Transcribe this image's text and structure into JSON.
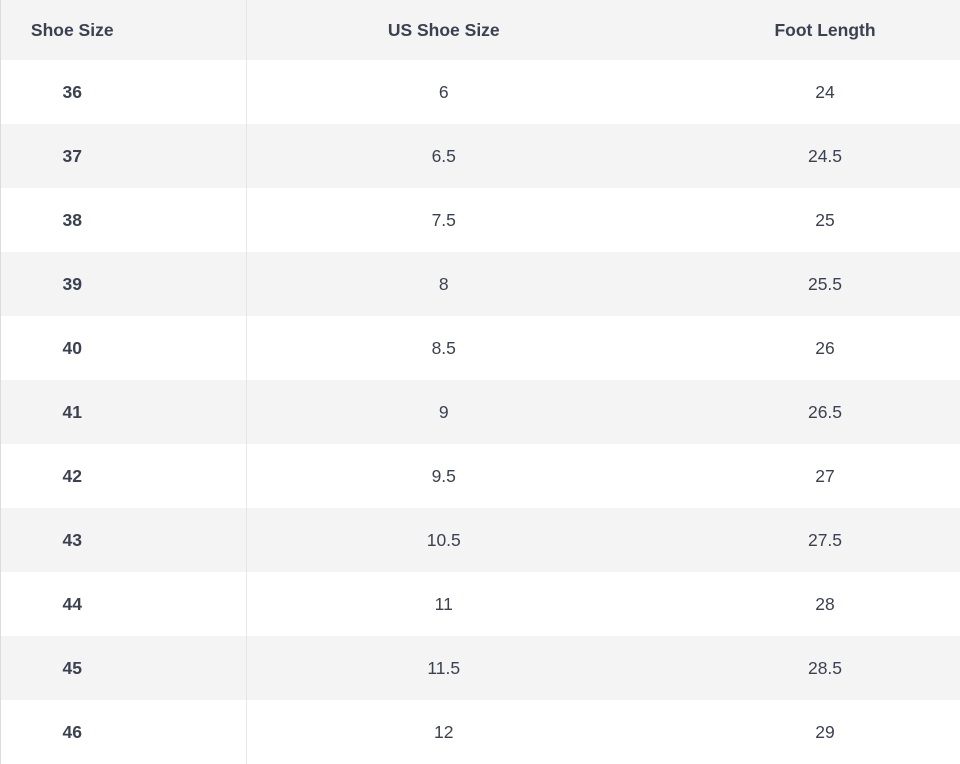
{
  "table": {
    "columns": [
      {
        "key": "shoe_size",
        "label": "Shoe Size"
      },
      {
        "key": "us_shoe_size",
        "label": "US Shoe Size"
      },
      {
        "key": "foot_length",
        "label": "Foot Length"
      }
    ],
    "rows": [
      {
        "shoe_size": "36",
        "us_shoe_size": "6",
        "foot_length": "24"
      },
      {
        "shoe_size": "37",
        "us_shoe_size": "6.5",
        "foot_length": "24.5"
      },
      {
        "shoe_size": "38",
        "us_shoe_size": "7.5",
        "foot_length": "25"
      },
      {
        "shoe_size": "39",
        "us_shoe_size": "8",
        "foot_length": "25.5"
      },
      {
        "shoe_size": "40",
        "us_shoe_size": "8.5",
        "foot_length": "26"
      },
      {
        "shoe_size": "41",
        "us_shoe_size": "9",
        "foot_length": "26.5"
      },
      {
        "shoe_size": "42",
        "us_shoe_size": "9.5",
        "foot_length": "27"
      },
      {
        "shoe_size": "43",
        "us_shoe_size": "10.5",
        "foot_length": "27.5"
      },
      {
        "shoe_size": "44",
        "us_shoe_size": "11",
        "foot_length": "28"
      },
      {
        "shoe_size": "45",
        "us_shoe_size": "11.5",
        "foot_length": "28.5"
      },
      {
        "shoe_size": "46",
        "us_shoe_size": "12",
        "foot_length": "29"
      }
    ]
  },
  "colors": {
    "stripe": "#f4f4f5",
    "text": "#3c4150",
    "divider": "#e6e6e8",
    "edge": "#dcdcde",
    "row_white": "#ffffff"
  }
}
